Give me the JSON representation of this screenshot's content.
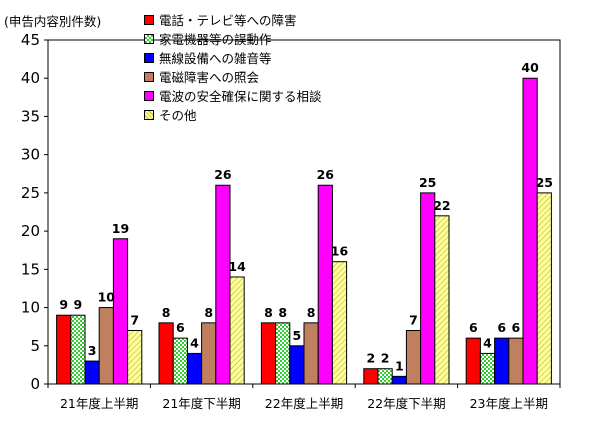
{
  "chart_data": {
    "type": "bar",
    "unit_label": "(申告内容別件数)",
    "categories": [
      "21年度上半期",
      "21年度下半期",
      "22年度上半期",
      "22年度下半期",
      "23年度上半期"
    ],
    "y_ticks": [
      "0",
      "5",
      "10",
      "15",
      "20",
      "25",
      "30",
      "35",
      "40",
      "45"
    ],
    "ylim": [
      0,
      45
    ],
    "grid": false,
    "legend_position": "top",
    "series": [
      {
        "name": "電話・テレビ等への障害",
        "values": [
          9,
          8,
          8,
          2,
          6
        ],
        "labels": [
          "9",
          "8",
          "8",
          "2",
          "6"
        ],
        "color": "#ff0000",
        "pattern": "solid"
      },
      {
        "name": "家電機器等の誤動作",
        "values": [
          9,
          6,
          8,
          2,
          4
        ],
        "labels": [
          "9",
          "6",
          "8",
          "2",
          "4"
        ],
        "color": "#33cc33",
        "pattern": "checker"
      },
      {
        "name": "無線設備への雑音等",
        "values": [
          3,
          4,
          5,
          1,
          6
        ],
        "labels": [
          "3",
          "4",
          "5",
          "1",
          "6"
        ],
        "color": "#0000ff",
        "pattern": "solid"
      },
      {
        "name": "電磁障害への照会",
        "values": [
          10,
          8,
          8,
          7,
          6
        ],
        "labels": [
          "10",
          "8",
          "8",
          "7",
          "6"
        ],
        "color": "#c08060",
        "pattern": "solid"
      },
      {
        "name": "電波の安全確保に関する相談",
        "values": [
          19,
          26,
          26,
          25,
          40
        ],
        "labels": [
          "19",
          "26",
          "26",
          "25",
          "40"
        ],
        "color": "#ff00ff",
        "pattern": "solid"
      },
      {
        "name": "その他",
        "values": [
          7,
          14,
          16,
          22,
          25
        ],
        "labels": [
          "7",
          "14",
          "16",
          "22",
          "25"
        ],
        "color": "#ffff99",
        "pattern": "stripe"
      }
    ]
  }
}
